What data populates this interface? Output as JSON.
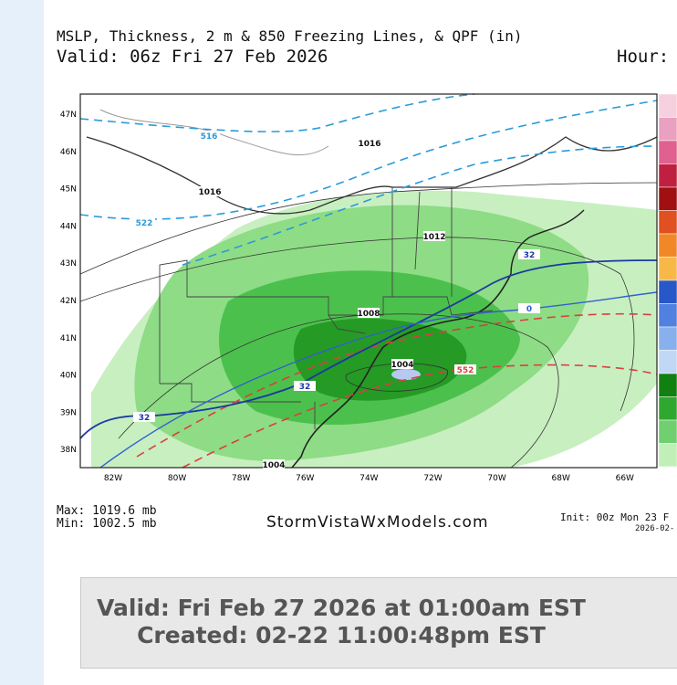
{
  "header": {
    "title": "MSLP, Thickness, 2 m & 850 Freezing Lines, & QPF (in)",
    "valid": "Valid: 06z Fri 27 Feb 2026",
    "hour": "Hour:"
  },
  "map": {
    "lat_labels": [
      "47N",
      "46N",
      "45N",
      "44N",
      "43N",
      "42N",
      "41N",
      "40N",
      "39N",
      "38N"
    ],
    "lon_labels": [
      "82W",
      "80W",
      "78W",
      "76W",
      "74W",
      "72W",
      "70W",
      "68W",
      "66W"
    ],
    "contour_labels": [
      "516",
      "1016",
      "1016",
      "522",
      "1012",
      "1008",
      "1004",
      "552",
      "32",
      "32",
      "32",
      "0",
      "1004"
    ]
  },
  "footer": {
    "max": "Max: 1019.6 mb",
    "min": "Min: 1002.5 mb",
    "site": "StormVistaWxModels.com",
    "init": "Init: 00z Mon 23 F",
    "init_date": "2026-02-"
  },
  "caption": {
    "line1": "Valid: Fri Feb 27 2026 at 01:00am EST",
    "line2": "Created: 02-22 11:00:48pm EST"
  }
}
